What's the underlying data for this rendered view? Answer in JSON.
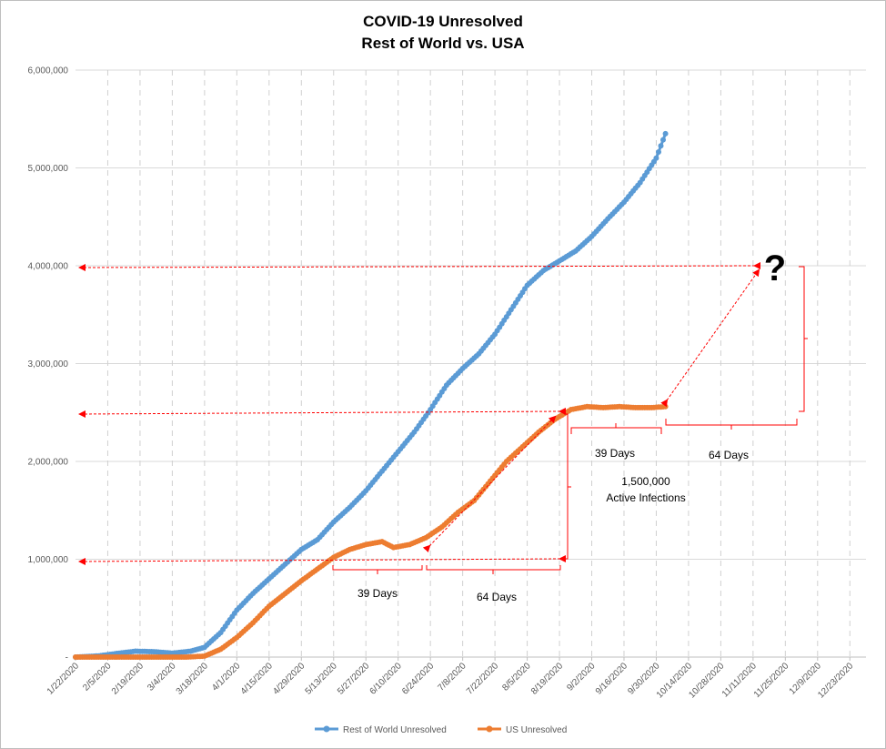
{
  "chart_data": {
    "type": "line",
    "title": "COVID-19 Unresolved",
    "subtitle": "Rest of World vs. USA",
    "ylim": [
      0,
      6000000
    ],
    "y_ticks": [
      0,
      1000000,
      2000000,
      3000000,
      4000000,
      5000000,
      6000000
    ],
    "y_tick_labels": [
      "-",
      "1,000,000",
      "2,000,000",
      "3,000,000",
      "4,000,000",
      "5,000,000",
      "6,000,000"
    ],
    "x_range": [
      "2020-01-22",
      "2020-12-30"
    ],
    "x_tick_labels": [
      "1/22/2020",
      "2/5/2020",
      "2/19/2020",
      "3/4/2020",
      "3/18/2020",
      "4/1/2020",
      "4/15/2020",
      "4/29/2020",
      "5/13/2020",
      "5/27/2020",
      "6/10/2020",
      "6/24/2020",
      "7/8/2020",
      "7/22/2020",
      "8/5/2020",
      "8/19/2020",
      "9/2/2020",
      "9/16/2020",
      "9/30/2020",
      "10/14/2020",
      "10/28/2020",
      "11/11/2020",
      "11/25/2020",
      "12/9/2020",
      "12/23/2020"
    ],
    "grid": "vertical dashed, horizontal solid",
    "legend_position": "bottom",
    "series": [
      {
        "name": "Rest of World Unresolved",
        "color": "#5b9bd5",
        "points": [
          [
            "2020-01-22",
            0
          ],
          [
            "2020-02-01",
            12000
          ],
          [
            "2020-02-10",
            40000
          ],
          [
            "2020-02-17",
            60000
          ],
          [
            "2020-02-25",
            55000
          ],
          [
            "2020-03-04",
            40000
          ],
          [
            "2020-03-12",
            60000
          ],
          [
            "2020-03-18",
            100000
          ],
          [
            "2020-03-25",
            250000
          ],
          [
            "2020-04-01",
            480000
          ],
          [
            "2020-04-08",
            650000
          ],
          [
            "2020-04-15",
            800000
          ],
          [
            "2020-04-22",
            950000
          ],
          [
            "2020-04-29",
            1100000
          ],
          [
            "2020-05-06",
            1200000
          ],
          [
            "2020-05-13",
            1380000
          ],
          [
            "2020-05-20",
            1530000
          ],
          [
            "2020-05-27",
            1700000
          ],
          [
            "2020-06-03",
            1900000
          ],
          [
            "2020-06-10",
            2100000
          ],
          [
            "2020-06-17",
            2300000
          ],
          [
            "2020-06-24",
            2530000
          ],
          [
            "2020-07-01",
            2780000
          ],
          [
            "2020-07-08",
            2950000
          ],
          [
            "2020-07-15",
            3100000
          ],
          [
            "2020-07-22",
            3300000
          ],
          [
            "2020-07-29",
            3550000
          ],
          [
            "2020-08-05",
            3800000
          ],
          [
            "2020-08-12",
            3950000
          ],
          [
            "2020-08-19",
            4050000
          ],
          [
            "2020-08-26",
            4150000
          ],
          [
            "2020-09-02",
            4300000
          ],
          [
            "2020-09-09",
            4480000
          ],
          [
            "2020-09-16",
            4650000
          ],
          [
            "2020-09-23",
            4850000
          ],
          [
            "2020-09-30",
            5100000
          ],
          [
            "2020-10-04",
            5350000
          ]
        ]
      },
      {
        "name": "US Unresolved",
        "color": "#ed7d31",
        "points": [
          [
            "2020-01-22",
            0
          ],
          [
            "2020-03-10",
            0
          ],
          [
            "2020-03-18",
            10000
          ],
          [
            "2020-03-25",
            80000
          ],
          [
            "2020-04-01",
            200000
          ],
          [
            "2020-04-08",
            350000
          ],
          [
            "2020-04-15",
            520000
          ],
          [
            "2020-04-22",
            650000
          ],
          [
            "2020-04-29",
            780000
          ],
          [
            "2020-05-06",
            900000
          ],
          [
            "2020-05-13",
            1020000
          ],
          [
            "2020-05-20",
            1100000
          ],
          [
            "2020-05-27",
            1150000
          ],
          [
            "2020-06-03",
            1180000
          ],
          [
            "2020-06-08",
            1120000
          ],
          [
            "2020-06-15",
            1150000
          ],
          [
            "2020-06-22",
            1220000
          ],
          [
            "2020-06-29",
            1330000
          ],
          [
            "2020-07-06",
            1480000
          ],
          [
            "2020-07-13",
            1600000
          ],
          [
            "2020-07-20",
            1800000
          ],
          [
            "2020-07-27",
            2000000
          ],
          [
            "2020-08-03",
            2150000
          ],
          [
            "2020-08-10",
            2300000
          ],
          [
            "2020-08-17",
            2430000
          ],
          [
            "2020-08-24",
            2530000
          ],
          [
            "2020-08-31",
            2560000
          ],
          [
            "2020-09-07",
            2550000
          ],
          [
            "2020-09-14",
            2560000
          ],
          [
            "2020-09-21",
            2550000
          ],
          [
            "2020-09-28",
            2550000
          ],
          [
            "2020-10-04",
            2560000
          ]
        ]
      }
    ],
    "annotations": {
      "question_mark": "?",
      "days_39_lower": "39 Days",
      "days_64_lower": "64 Days",
      "days_39_upper": "39 Days",
      "days_64_upper": "64 Days",
      "active_infections_value": "1,500,000",
      "active_infections_label": "Active Infections",
      "arrow_color": "#ff0000"
    }
  }
}
